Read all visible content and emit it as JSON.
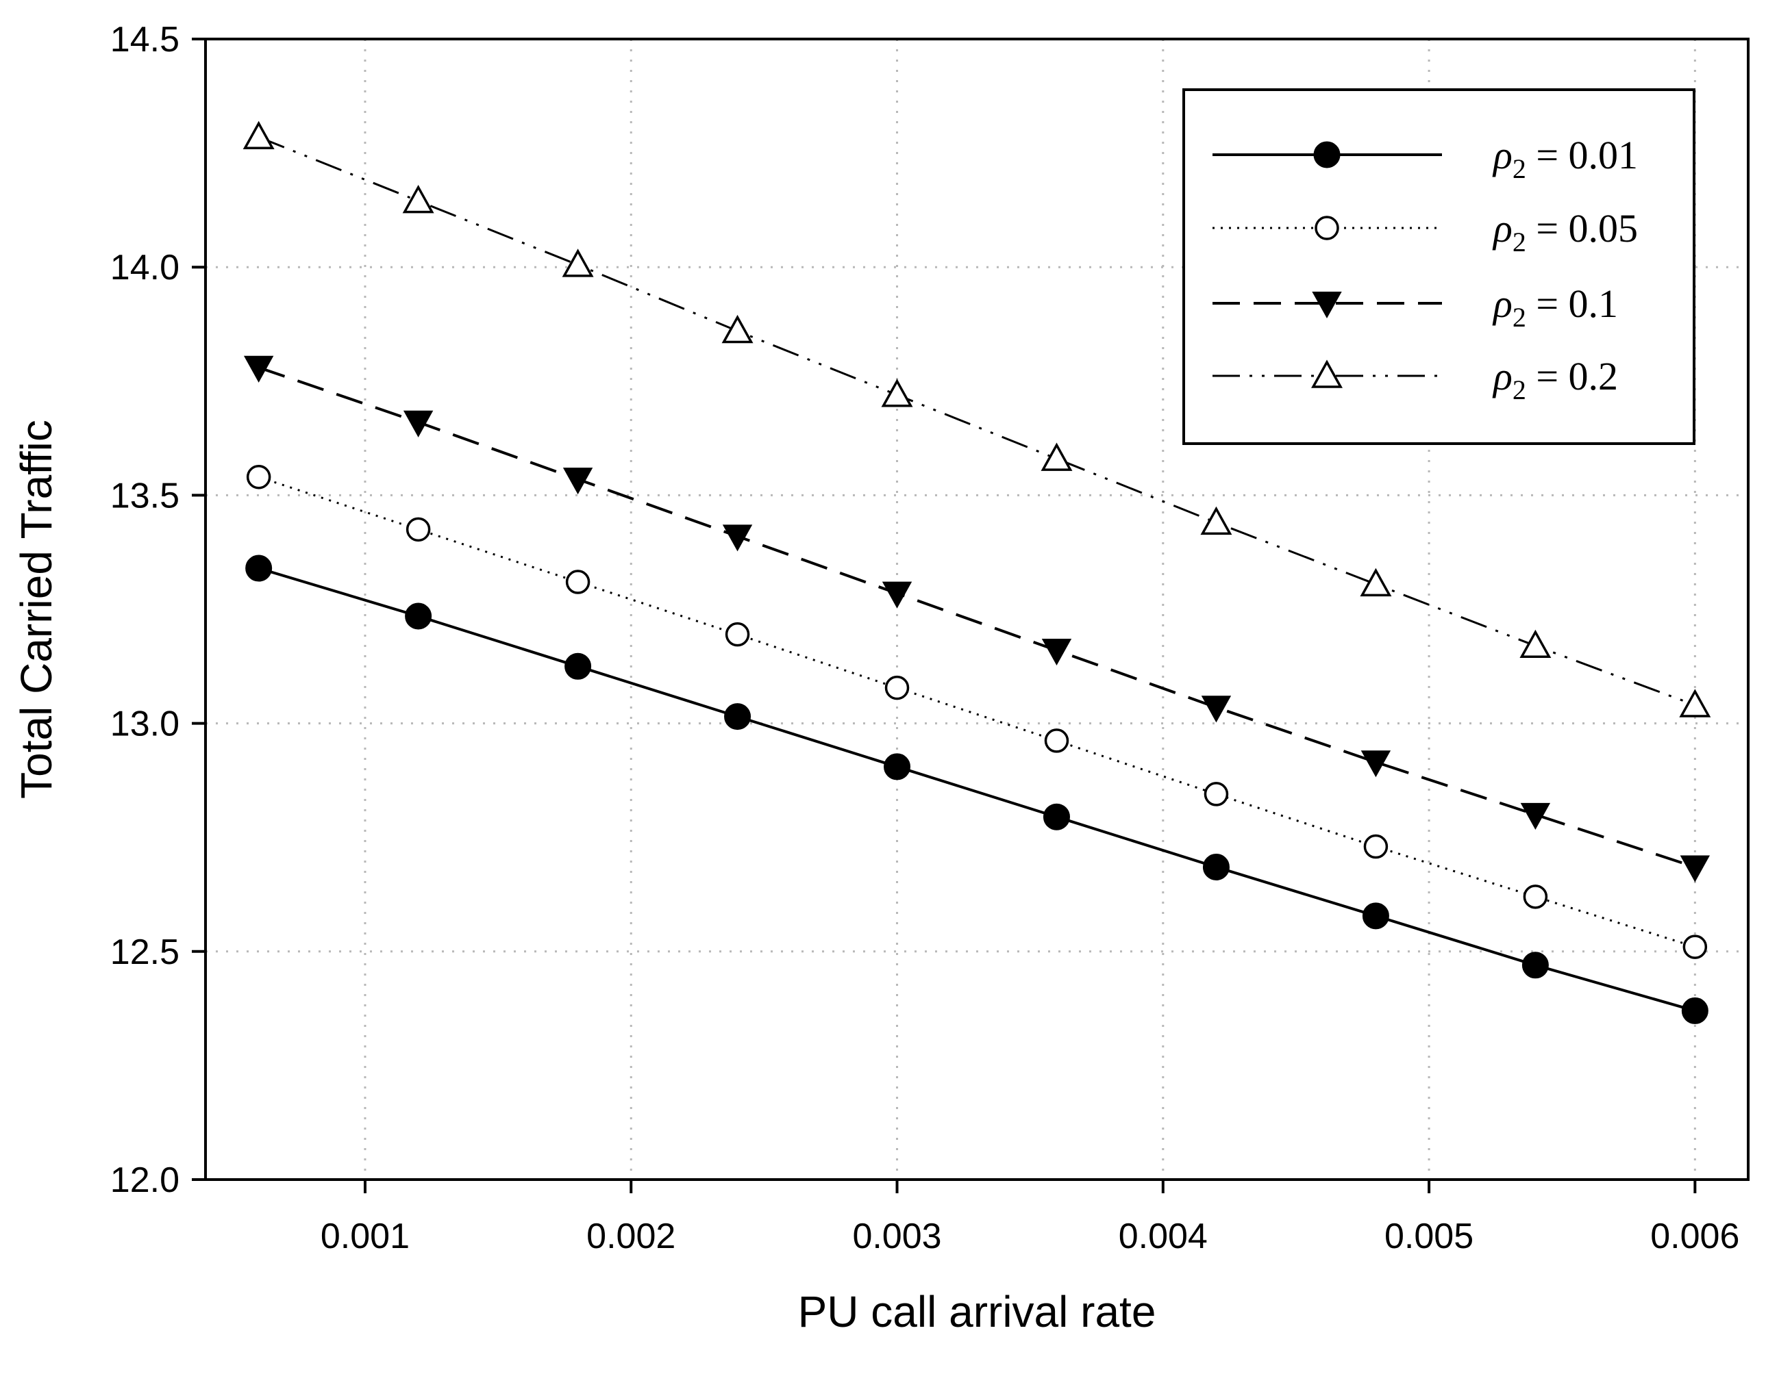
{
  "chart_data": {
    "type": "line",
    "title": "",
    "xlabel": "PU call arrival rate",
    "ylabel": "Total Carried Traffic",
    "xlim": [
      0.0004,
      0.0062
    ],
    "ylim": [
      12.0,
      14.5
    ],
    "xticks": [
      0.001,
      0.002,
      0.003,
      0.004,
      0.005,
      0.006
    ],
    "xtick_labels": [
      "0.001",
      "0.002",
      "0.003",
      "0.004",
      "0.005",
      "0.006"
    ],
    "yticks": [
      12.0,
      12.5,
      13.0,
      13.5,
      14.0,
      14.5
    ],
    "ytick_labels": [
      "12.0",
      "12.5",
      "13.0",
      "13.5",
      "14.0",
      "14.5"
    ],
    "grid": true,
    "legend_position": "top-right",
    "x": [
      0.0006,
      0.0012,
      0.0018,
      0.0024,
      0.003,
      0.0036,
      0.0042,
      0.0048,
      0.0054,
      0.006
    ],
    "series": [
      {
        "name": "ρ2 = 0.01",
        "symbol": "ρ",
        "subscript": "2",
        "value_text": " = 0.01",
        "marker": "filled-circle",
        "line": "solid",
        "values": [
          13.34,
          13.235,
          13.125,
          13.015,
          12.905,
          12.795,
          12.685,
          12.578,
          12.47,
          12.37
        ]
      },
      {
        "name": "ρ2 = 0.05",
        "symbol": "ρ",
        "subscript": "2",
        "value_text": " = 0.05",
        "marker": "open-circle",
        "line": "dotted",
        "values": [
          13.54,
          13.425,
          13.31,
          13.195,
          13.078,
          12.962,
          12.845,
          12.73,
          12.62,
          12.51
        ]
      },
      {
        "name": "ρ2 = 0.1",
        "symbol": "ρ",
        "subscript": "2",
        "value_text": " = 0.1",
        "marker": "filled-triangle-down",
        "line": "dashed",
        "values": [
          13.78,
          13.66,
          13.535,
          13.41,
          13.285,
          13.16,
          13.035,
          12.915,
          12.8,
          12.685
        ]
      },
      {
        "name": "ρ2 = 0.2",
        "symbol": "ρ",
        "subscript": "2",
        "value_text": " = 0.2",
        "marker": "open-triangle-up",
        "line": "dash-dot-dot",
        "values": [
          14.285,
          14.145,
          14.005,
          13.86,
          13.72,
          13.58,
          13.44,
          13.305,
          13.17,
          13.04
        ]
      }
    ]
  }
}
